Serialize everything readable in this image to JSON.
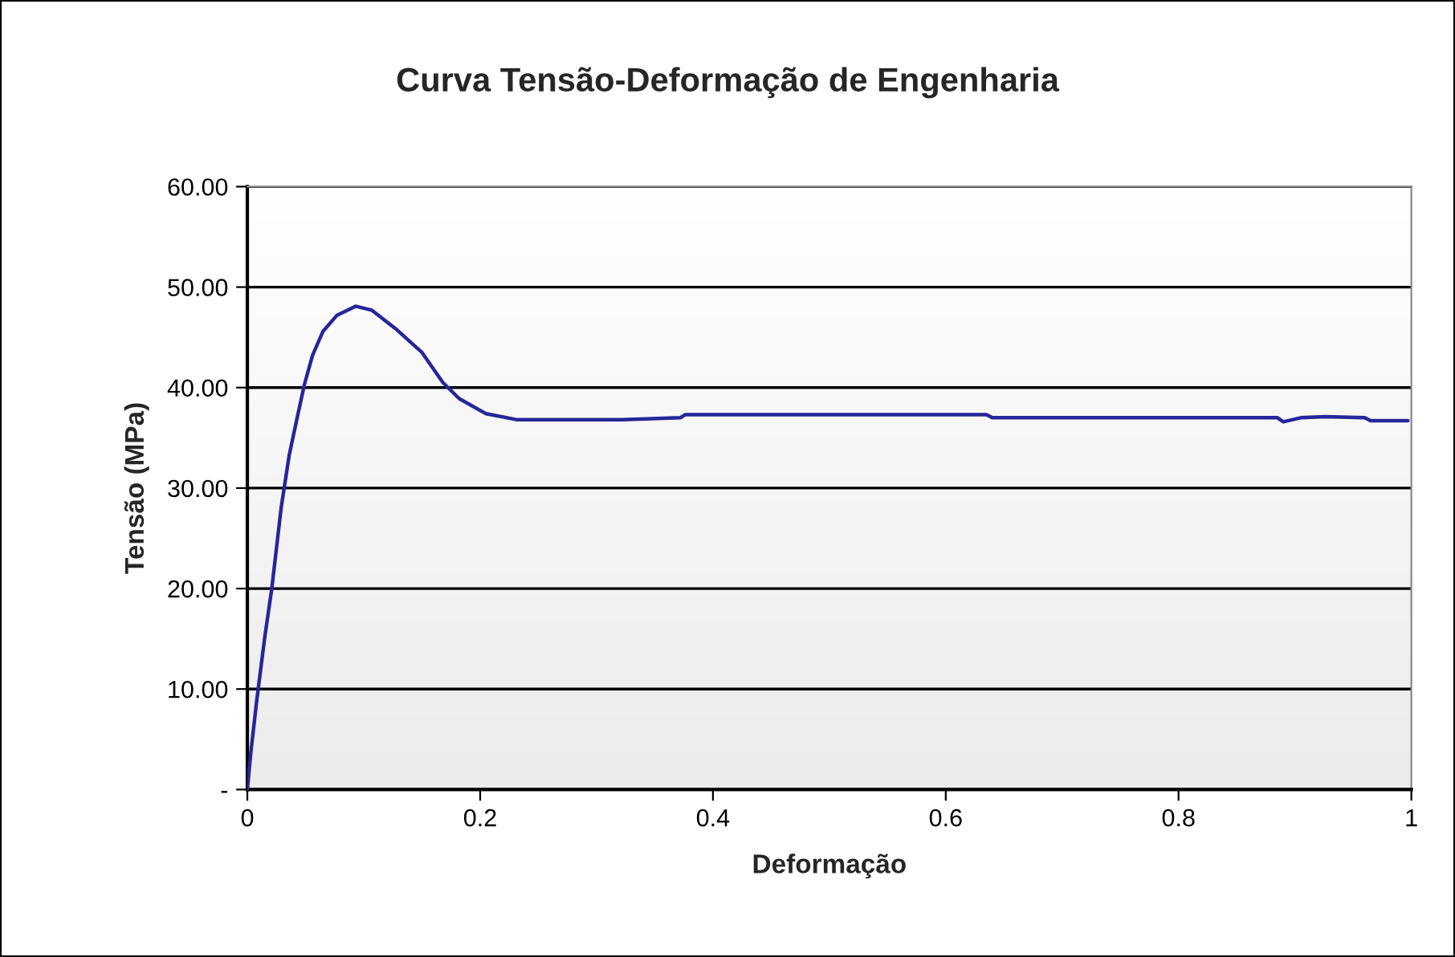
{
  "chart_data": {
    "type": "line",
    "title": "Curva Tensão-Deformação de Engenharia",
    "xlabel": "Deformação",
    "ylabel": "Tensão (MPa)",
    "series": [
      {
        "color": "#26269a",
        "x": [
          0,
          0.003,
          0.008,
          0.015,
          0.021,
          0.029,
          0.036,
          0.043,
          0.049,
          0.056,
          0.065,
          0.077,
          0.093,
          0.107,
          0.127,
          0.15,
          0.168,
          0.182,
          0.205,
          0.232,
          0.322,
          0.372,
          0.376,
          0.635,
          0.64,
          0.885,
          0.89,
          0.905,
          0.926,
          0.96,
          0.965,
          0.997
        ],
        "values": [
          0,
          3.7,
          8.8,
          15.2,
          20,
          28,
          33.3,
          37.1,
          40.3,
          43.2,
          45.6,
          47.2,
          48.1,
          47.7,
          45.9,
          43.5,
          40.5,
          38.9,
          37.4,
          36.8,
          36.8,
          37.0,
          37.3,
          37.3,
          37.0,
          37.0,
          36.6,
          37.0,
          37.1,
          37.0,
          36.7,
          36.7
        ]
      }
    ],
    "xlim": [
      0,
      1
    ],
    "xticks": [
      0,
      0.2,
      0.4,
      0.6,
      0.8,
      1
    ],
    "ylim": [
      0,
      60
    ],
    "yticks": [
      {
        "value": 0,
        "label": "-"
      },
      {
        "value": 10,
        "label": "10.00"
      },
      {
        "value": 20,
        "label": "20.00"
      },
      {
        "value": 30,
        "label": "30.00"
      },
      {
        "value": 40,
        "label": "40.00"
      },
      {
        "value": 50,
        "label": "50.00"
      },
      {
        "value": 60,
        "label": "60.00"
      }
    ],
    "grid": "y",
    "marker": "none",
    "line_style": "solid"
  }
}
